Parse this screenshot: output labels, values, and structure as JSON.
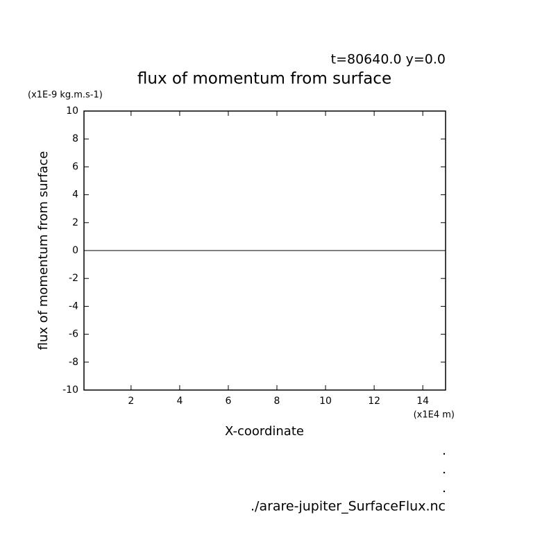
{
  "chart_data": {
    "type": "line",
    "title": "flux of momentum from surface",
    "subtitle": "t=80640.0 y=0.0",
    "y_unit": "(x1E-9 kg.m.s-1)",
    "x_unit": "(x1E4 m)",
    "ylabel": "flux of momentum from surface",
    "xlabel": "X-coordinate",
    "footnote": "./arare-jupiter_SurfaceFlux.nc",
    "x": [
      0.0625,
      14.9375
    ],
    "series": [
      {
        "color": "#000000",
        "values": [
          0,
          0
        ]
      }
    ],
    "xlim": [
      0.0625,
      14.9375
    ],
    "xticks": [
      2,
      4,
      6,
      8,
      10,
      12,
      14
    ],
    "ylim": [
      -10,
      10
    ],
    "yticks": [
      -10,
      -8,
      -6,
      -4,
      -2,
      0,
      2,
      4,
      6,
      8,
      10
    ]
  }
}
